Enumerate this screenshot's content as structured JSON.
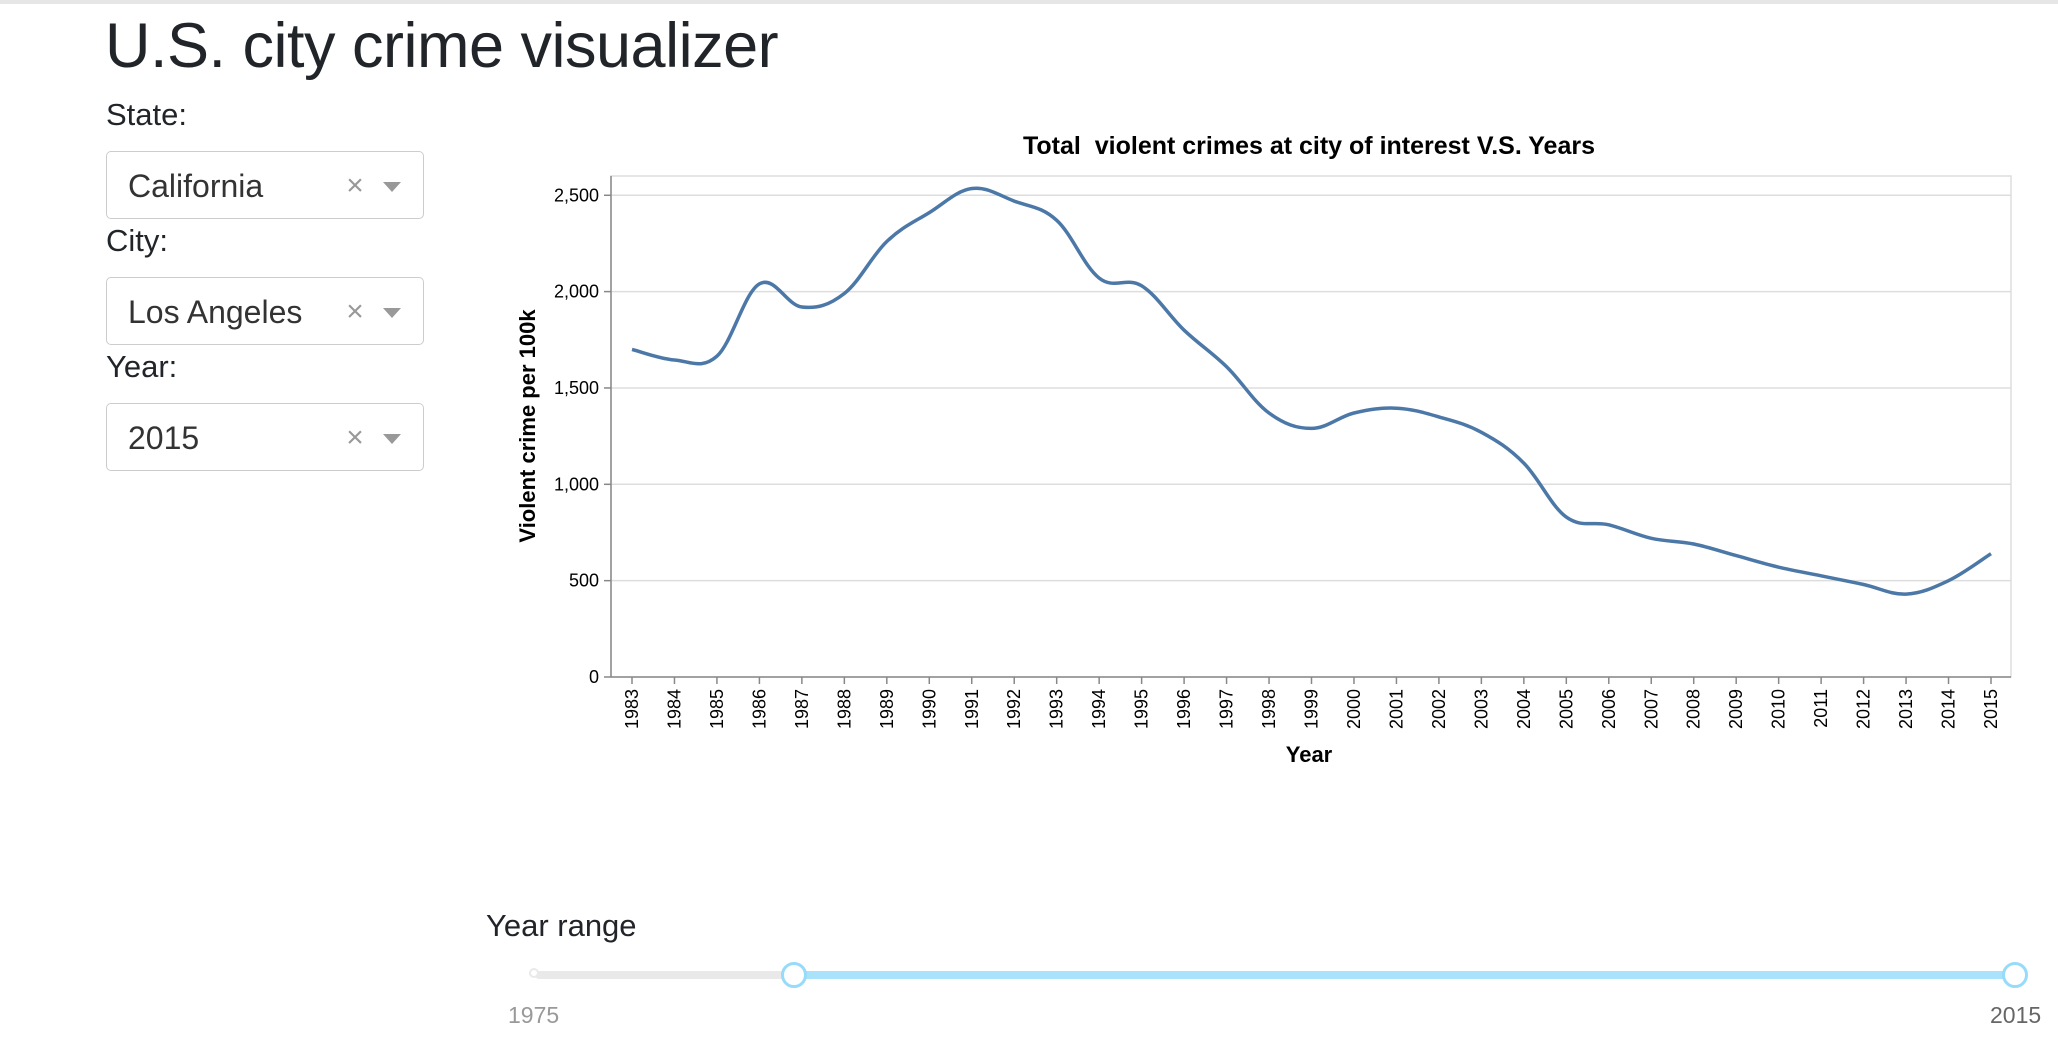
{
  "app": {
    "title": "U.S. city crime visualizer"
  },
  "filters": {
    "state": {
      "label": "State:",
      "value": "California"
    },
    "city": {
      "label": "City:",
      "value": "Los Angeles"
    },
    "year": {
      "label": "Year:",
      "value": "2015"
    },
    "clear_glyph": "×"
  },
  "slider": {
    "label": "Year range",
    "min": 1975,
    "max": 2015,
    "selected": [
      1982,
      2015
    ],
    "min_label": "1975",
    "max_label": "2015",
    "colors": {
      "track": "#abe2fb",
      "handle_border": "#96dbfa",
      "rail": "#e9e9e9"
    }
  },
  "chart_data": {
    "type": "line",
    "title": "Total  violent crimes at city of interest V.S. Years",
    "xlabel": "Year",
    "ylabel": "Violent crime per 100k",
    "x": [
      1983,
      1984,
      1985,
      1986,
      1987,
      1988,
      1989,
      1990,
      1991,
      1992,
      1993,
      1994,
      1995,
      1996,
      1997,
      1998,
      1999,
      2000,
      2001,
      2002,
      2003,
      2004,
      2005,
      2006,
      2007,
      2008,
      2009,
      2010,
      2011,
      2012,
      2013,
      2014,
      2015
    ],
    "series": [
      {
        "values": [
          1700,
          1645,
          1665,
          2040,
          1920,
          1990,
          2260,
          2410,
          2535,
          2470,
          2370,
          2070,
          2030,
          1800,
          1610,
          1370,
          1290,
          1370,
          1395,
          1350,
          1270,
          1110,
          830,
          790,
          720,
          690,
          630,
          570,
          525,
          480,
          430,
          500,
          640
        ],
        "color": "#4c78a8"
      }
    ],
    "ylim": [
      0,
      2600
    ],
    "yticks": [
      0,
      500,
      1000,
      1500,
      2000,
      2500
    ],
    "ytick_labels": [
      "0",
      "500",
      "1,000",
      "1,500",
      "2,000",
      "2,500"
    ],
    "grid": true
  }
}
